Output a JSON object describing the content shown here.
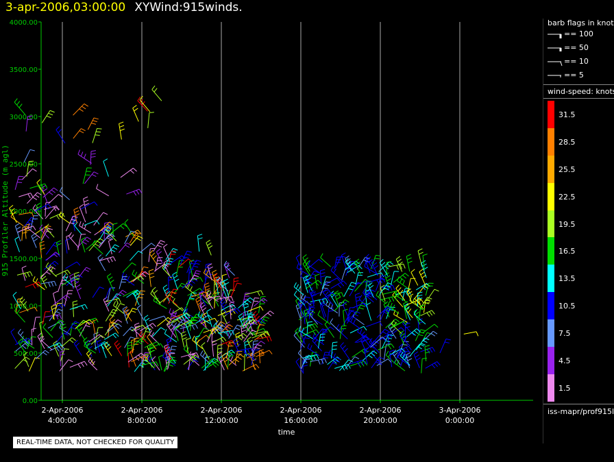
{
  "header": {
    "date": "3-apr-2006,03:00:00",
    "title": "XYWind:915winds."
  },
  "chart_data": {
    "type": "wind-barb profile (time-height)",
    "ylabel": "915 Profiler Altitude (m agl)",
    "xlabel": "time",
    "ylim": [
      0,
      4000
    ],
    "yticks": [
      "0.00",
      "500.00",
      "1000.00",
      "1500.00",
      "2000.00",
      "2500.00",
      "3000.00",
      "3500.00",
      "4000.00"
    ],
    "xticks": [
      {
        "hour": 4,
        "line1": "2-Apr-2006",
        "line2": "4:00:00"
      },
      {
        "hour": 8,
        "line1": "2-Apr-2006",
        "line2": "8:00:00"
      },
      {
        "hour": 12,
        "line1": "2-Apr-2006",
        "line2": "12:00:00"
      },
      {
        "hour": 16,
        "line1": "2-Apr-2006",
        "line2": "16:00:00"
      },
      {
        "hour": 20,
        "line1": "2-Apr-2006",
        "line2": "20:00:00"
      },
      {
        "hour": 24,
        "line1": "3-Apr-2006",
        "line2": "0:00:00"
      }
    ],
    "xlim_hours": [
      1.0,
      27.0
    ],
    "grid": "vertical lines at x ticks",
    "series": [
      {
        "time_range_hours": [
          1.5,
          14.0
        ],
        "alt_range_m": [
          300,
          3200
        ],
        "note": "dense mixed-speed barbs"
      },
      {
        "time_range_hours": [
          15.9,
          22.5
        ],
        "alt_range_m": [
          250,
          1500
        ],
        "note": "blue/cyan lower barbs, green/yellow upper"
      }
    ]
  },
  "legend": {
    "flags_title": "barb flags in knots",
    "flags": [
      {
        "label": "== 100",
        "type": "pennant"
      },
      {
        "label": "== 50",
        "type": "half-pennant"
      },
      {
        "label": "== 10",
        "type": "full"
      },
      {
        "label": "== 5",
        "type": "half"
      }
    ],
    "speed_title": "wind-speed: knots",
    "speeds": [
      {
        "label": "31.5",
        "color": "#ff0000"
      },
      {
        "label": "28.5",
        "color": "#ff8000"
      },
      {
        "label": "25.5",
        "color": "#ffaa00"
      },
      {
        "label": "22.5",
        "color": "#ffff00"
      },
      {
        "label": "19.5",
        "color": "#aaff22"
      },
      {
        "label": "16.5",
        "color": "#00dd00"
      },
      {
        "label": "13.5",
        "color": "#00ffff"
      },
      {
        "label": "10.5",
        "color": "#0000ff"
      },
      {
        "label": "7.5",
        "color": "#6699ff"
      },
      {
        "label": "4.5",
        "color": "#9922ee"
      },
      {
        "label": "1.5",
        "color": "#ee88ee"
      }
    ],
    "source": "iss-mapr/prof915l"
  },
  "warning": "REAL-TIME DATA, NOT CHECKED FOR QUALITY"
}
